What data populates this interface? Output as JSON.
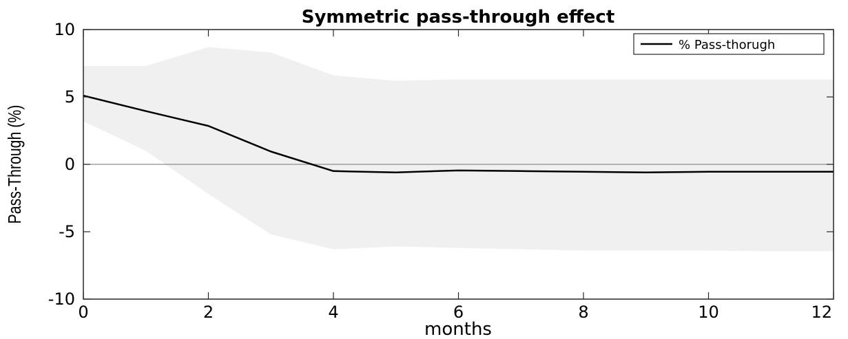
{
  "chart_data": {
    "type": "line",
    "title": "Symmetric pass-through effect",
    "xlabel": "months",
    "ylabel": "Pass-Through (%)",
    "xlim": [
      0,
      12
    ],
    "ylim": [
      -10,
      10
    ],
    "xticks": [
      0,
      2,
      4,
      6,
      8,
      10,
      12
    ],
    "yticks": [
      10,
      5,
      0,
      -5,
      -10
    ],
    "x": [
      0,
      1,
      2,
      3,
      4,
      5,
      6,
      7,
      8,
      9,
      10,
      11,
      12
    ],
    "series": [
      {
        "name": "% Pass-thorugh",
        "color": "#000000",
        "values": [
          5.1,
          3.95,
          2.85,
          0.95,
          -0.5,
          -0.6,
          -0.45,
          -0.5,
          -0.55,
          -0.6,
          -0.55,
          -0.55,
          -0.55
        ]
      }
    ],
    "band": {
      "color": "#f0f0f0",
      "upper": [
        7.3,
        7.3,
        8.7,
        8.3,
        6.6,
        6.2,
        6.3,
        6.3,
        6.3,
        6.3,
        6.3,
        6.3,
        6.3
      ],
      "lower": [
        3.2,
        1.0,
        -2.2,
        -5.2,
        -6.3,
        -6.1,
        -6.2,
        -6.3,
        -6.4,
        -6.4,
        -6.4,
        -6.45,
        -6.45
      ]
    },
    "zero_line": true,
    "grid": false,
    "legend": "top-right"
  }
}
